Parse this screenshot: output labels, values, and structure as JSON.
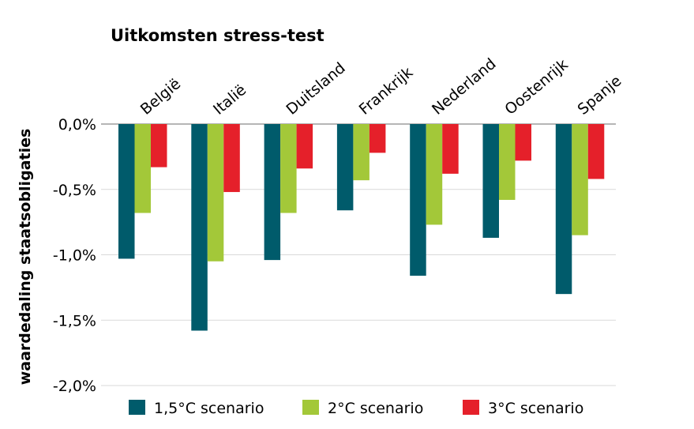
{
  "chart_data": {
    "type": "bar",
    "title": "Uitkomsten stress-test",
    "ylabel": "waardedaling staatsobligaties",
    "xlabel": "",
    "categories": [
      "België",
      "Italië",
      "Duitsland",
      "Frankrijk",
      "Nederland",
      "Oostenrijk",
      "Spanje"
    ],
    "series": [
      {
        "name": "1,5°C scenario",
        "color": "#005b6b",
        "values": [
          -1.03,
          -1.58,
          -1.04,
          -0.66,
          -1.16,
          -0.87,
          -1.3
        ]
      },
      {
        "name": "2°C scenario",
        "color": "#a3c839",
        "values": [
          -0.68,
          -1.05,
          -0.68,
          -0.43,
          -0.77,
          -0.58,
          -0.85
        ]
      },
      {
        "name": "3°C scenario",
        "color": "#e5202a",
        "values": [
          -0.33,
          -0.52,
          -0.34,
          -0.22,
          -0.38,
          -0.28,
          -0.42
        ]
      }
    ],
    "ylim": [
      -2.0,
      0.0
    ],
    "yticks": [
      0.0,
      -0.5,
      -1.0,
      -1.5,
      -2.0
    ],
    "ytick_labels": [
      "0,0%",
      "-0,5%",
      "-1,0%",
      "-1,5%",
      "-2,0%"
    ],
    "grid": true,
    "legend_position": "bottom"
  }
}
